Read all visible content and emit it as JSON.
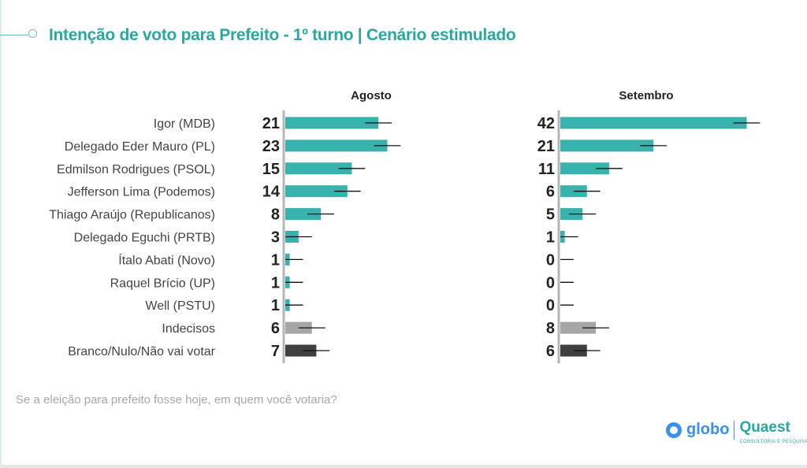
{
  "title": "Intenção de voto para Prefeito - 1º turno | Cenário estimulado",
  "question": "Se a eleição para prefeito fosse hoje, em quem você votaria?",
  "logo": {
    "globo": "globo",
    "quaest": "Quaest",
    "quaest_sub": "CONSULTORIA E PESQUISA"
  },
  "chart_data": {
    "type": "bar",
    "orientation": "horizontal",
    "title": "Intenção de voto para Prefeito - 1º turno | Cenário estimulado",
    "categories": [
      "Igor (MDB)",
      "Delegado Eder Mauro (PL)",
      "Edmilson Rodrigues (PSOL)",
      "Jefferson Lima (Podemos)",
      "Thiago Araújo (Republicanos)",
      "Delegado Eguchi (PRTB)",
      "Ítalo Abati (Novo)",
      "Raquel Brício (UP)",
      "Well (PSTU)",
      "Indecisos",
      "Branco/Nulo/Não vai votar"
    ],
    "series": [
      {
        "name": "Agosto",
        "values": [
          21,
          23,
          15,
          14,
          8,
          3,
          1,
          1,
          1,
          6,
          7
        ]
      },
      {
        "name": "Setembro",
        "values": [
          42,
          21,
          11,
          6,
          5,
          1,
          0,
          0,
          0,
          8,
          6
        ]
      }
    ],
    "error_margin": 3,
    "colors": {
      "candidate": "#38b2ac",
      "undecided": "#a6a6a6",
      "blank": "#404040",
      "error": "#111111",
      "axis": "#b5b5b5"
    }
  }
}
